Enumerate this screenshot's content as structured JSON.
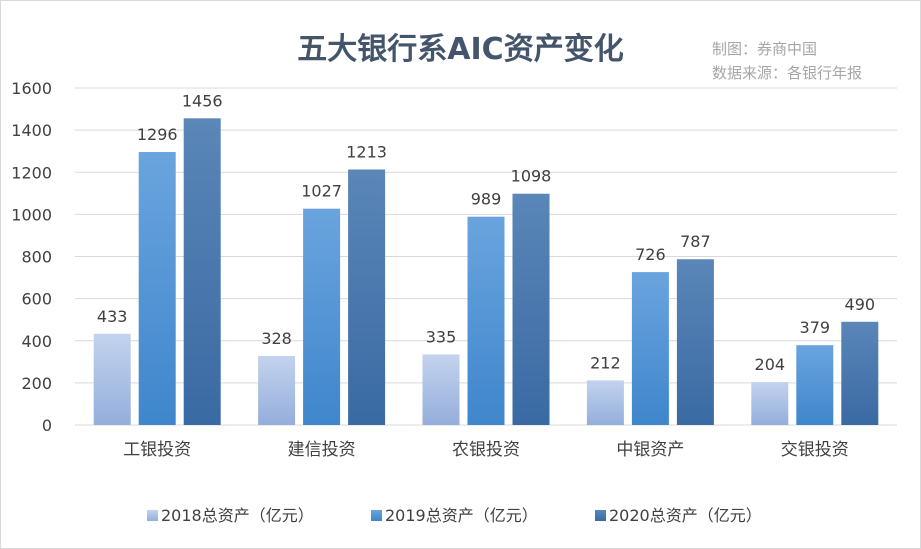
{
  "chart_data": {
    "type": "bar",
    "title": "五大银行系AIC资产变化",
    "notes": [
      "制图：券商中国",
      "数据来源：各银行年报"
    ],
    "categories": [
      "工银投资",
      "建信投资",
      "农银投资",
      "中银资产",
      "交银投资"
    ],
    "series": [
      {
        "name": "2018总资产（亿元）",
        "values": [
          433,
          328,
          335,
          212,
          204
        ],
        "color": "#a9bfe3"
      },
      {
        "name": "2019总资产（亿元）",
        "values": [
          1296,
          1027,
          989,
          726,
          379
        ],
        "color": "#5b9bd5"
      },
      {
        "name": "2020总资产（亿元）",
        "values": [
          1456,
          1213,
          1098,
          787,
          490
        ],
        "color": "#4a78ad"
      }
    ],
    "ylim": [
      0,
      1600
    ],
    "yticks": [
      0,
      200,
      400,
      600,
      800,
      1000,
      1200,
      1400,
      1600
    ],
    "grid": true,
    "legend": "bottom"
  }
}
